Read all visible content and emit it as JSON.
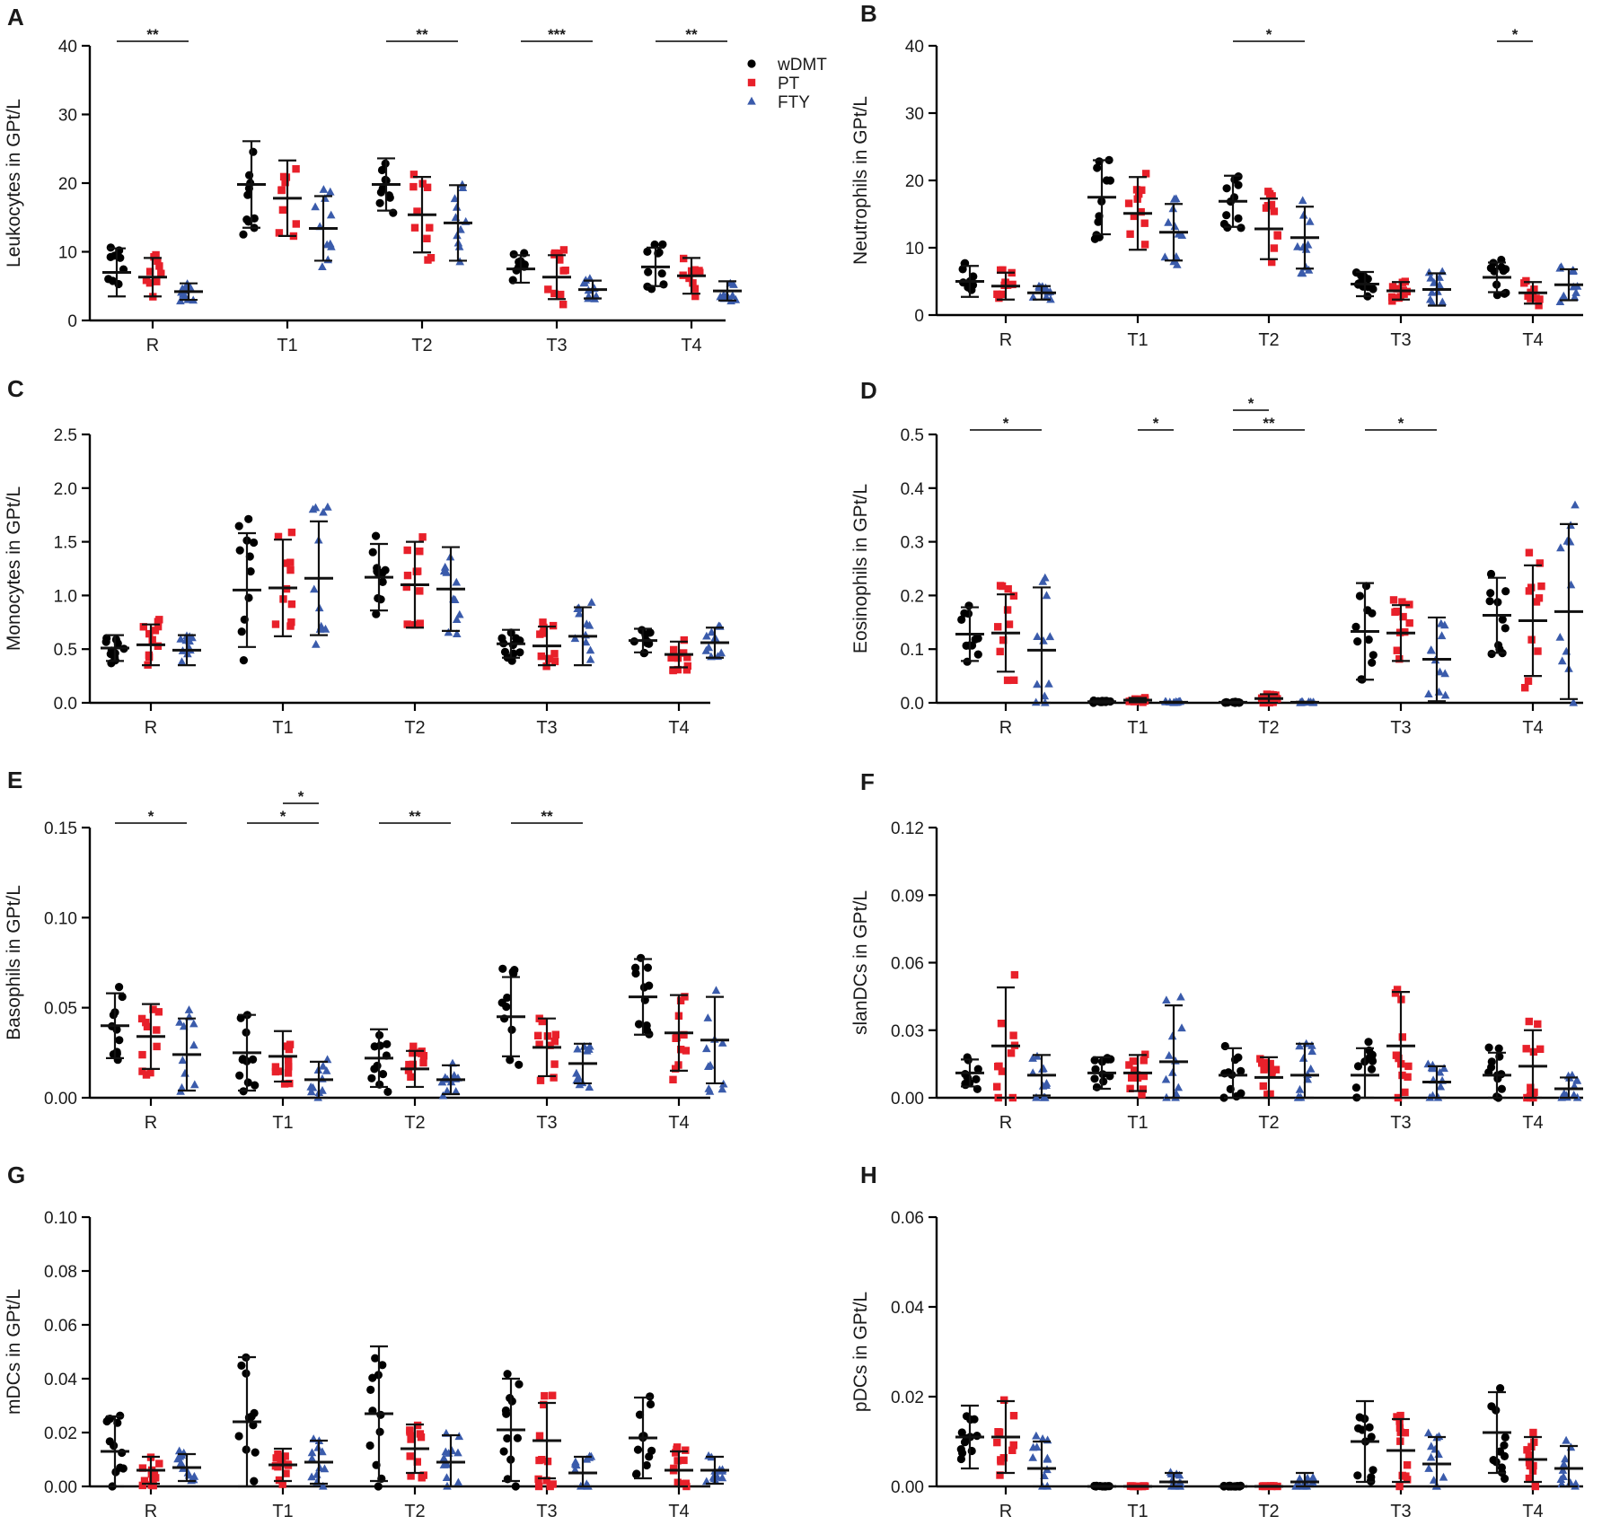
{
  "categories": [
    "R",
    "T1",
    "T2",
    "T3",
    "T4"
  ],
  "legend": [
    {
      "name": "wDMT",
      "color": "#000000",
      "marker": "circle"
    },
    {
      "name": "PT",
      "color": "#e8202a",
      "marker": "square"
    },
    {
      "name": "FTY",
      "color": "#3a5bab",
      "marker": "triangle"
    }
  ],
  "chart_data": [
    {
      "letter": "A",
      "type": "scatter",
      "title": "",
      "xlabel": "",
      "ylabel": "Leukocytes in GPt/L",
      "ylim": [
        0,
        40
      ],
      "ticks": [
        "0",
        "10",
        "20",
        "30",
        "40"
      ],
      "series": [
        {
          "name": "wDMT",
          "means": [
            7.0,
            19.8,
            19.8,
            7.5,
            7.8
          ],
          "sd": [
            3.5,
            6.3,
            3.8,
            2.0,
            2.8
          ]
        },
        {
          "name": "PT",
          "means": [
            6.3,
            17.8,
            15.4,
            6.3,
            6.5
          ],
          "sd": [
            2.8,
            5.5,
            5.5,
            3.2,
            2.6
          ]
        },
        {
          "name": "FTY",
          "means": [
            4.2,
            13.4,
            14.2,
            4.5,
            4.3
          ],
          "sd": [
            1.2,
            4.7,
            5.5,
            1.3,
            1.4
          ]
        }
      ],
      "significance": [
        {
          "group": 0,
          "from": 0,
          "to": 2,
          "label": "**"
        },
        {
          "group": 2,
          "from": 0,
          "to": 2,
          "label": "**"
        },
        {
          "group": 3,
          "from": 0,
          "to": 2,
          "label": "***"
        },
        {
          "group": 4,
          "from": 0,
          "to": 2,
          "label": "**"
        }
      ]
    },
    {
      "letter": "B",
      "type": "scatter",
      "title": "",
      "xlabel": "",
      "ylabel": "Neutrophils in GPt/L",
      "ylim": [
        0,
        40
      ],
      "ticks": [
        "0",
        "10",
        "20",
        "30",
        "40"
      ],
      "series": [
        {
          "name": "wDMT",
          "means": [
            5.0,
            17.5,
            16.9,
            4.6,
            5.6
          ],
          "sd": [
            2.3,
            5.5,
            3.8,
            1.8,
            2.2
          ]
        },
        {
          "name": "PT",
          "means": [
            4.3,
            15.1,
            12.8,
            3.6,
            3.3
          ],
          "sd": [
            2.0,
            5.4,
            4.5,
            1.3,
            1.6
          ]
        },
        {
          "name": "FTY",
          "means": [
            3.3,
            12.3,
            11.5,
            3.8,
            4.5
          ],
          "sd": [
            1.0,
            4.2,
            4.6,
            2.4,
            2.3
          ]
        }
      ],
      "significance": [
        {
          "group": 2,
          "from": 0,
          "to": 2,
          "label": "*"
        },
        {
          "group": 4,
          "from": 0,
          "to": 1,
          "label": "*"
        }
      ]
    },
    {
      "letter": "C",
      "type": "scatter",
      "title": "",
      "xlabel": "",
      "ylabel": "Monocytes in GPt/L",
      "ylim": [
        0,
        2.5
      ],
      "ticks": [
        "0.0",
        "0.5",
        "1.0",
        "1.5",
        "2.0",
        "2.5"
      ],
      "series": [
        {
          "name": "wDMT",
          "means": [
            0.51,
            1.05,
            1.17,
            0.55,
            0.58
          ],
          "sd": [
            0.12,
            0.53,
            0.31,
            0.13,
            0.11
          ]
        },
        {
          "name": "PT",
          "means": [
            0.54,
            1.07,
            1.1,
            0.53,
            0.45
          ],
          "sd": [
            0.19,
            0.45,
            0.4,
            0.18,
            0.12
          ]
        },
        {
          "name": "FTY",
          "means": [
            0.49,
            1.16,
            1.06,
            0.62,
            0.56
          ],
          "sd": [
            0.14,
            0.53,
            0.39,
            0.27,
            0.14
          ]
        }
      ],
      "significance": []
    },
    {
      "letter": "D",
      "type": "scatter",
      "title": "",
      "xlabel": "",
      "ylabel": "Eosinophils in GPt/L",
      "ylim": [
        0,
        0.5
      ],
      "ticks": [
        "0.0",
        "0.1",
        "0.2",
        "0.3",
        "0.4",
        "0.5"
      ],
      "series": [
        {
          "name": "wDMT",
          "means": [
            0.128,
            0.002,
            0.001,
            0.133,
            0.163
          ],
          "sd": [
            0.05,
            0.002,
            0.001,
            0.09,
            0.07
          ]
        },
        {
          "name": "PT",
          "means": [
            0.13,
            0.005,
            0.008,
            0.13,
            0.153
          ],
          "sd": [
            0.072,
            0.004,
            0.008,
            0.052,
            0.103
          ]
        },
        {
          "name": "FTY",
          "means": [
            0.098,
            0.001,
            0.001,
            0.081,
            0.17
          ],
          "sd": [
            0.117,
            0.001,
            0.001,
            0.078,
            0.163
          ]
        }
      ],
      "significance": [
        {
          "group": 0,
          "from": 0,
          "to": 2,
          "label": "*"
        },
        {
          "group": 1,
          "from": 1,
          "to": 2,
          "label": "*"
        },
        {
          "group": 2,
          "from": 0,
          "to": 1,
          "label": "*",
          "level": 1
        },
        {
          "group": 2,
          "from": 0,
          "to": 2,
          "label": "**"
        },
        {
          "group": 3,
          "from": 0,
          "to": 2,
          "label": "*"
        }
      ]
    },
    {
      "letter": "E",
      "type": "scatter",
      "title": "",
      "xlabel": "",
      "ylabel": "Basophils in GPt/L",
      "ylim": [
        0,
        0.15
      ],
      "ticks": [
        "0.00",
        "0.05",
        "0.10",
        "0.15"
      ],
      "series": [
        {
          "name": "wDMT",
          "means": [
            0.04,
            0.025,
            0.022,
            0.045,
            0.056
          ],
          "sd": [
            0.018,
            0.021,
            0.016,
            0.022,
            0.021
          ]
        },
        {
          "name": "PT",
          "means": [
            0.034,
            0.023,
            0.016,
            0.028,
            0.036
          ],
          "sd": [
            0.018,
            0.014,
            0.01,
            0.016,
            0.021
          ]
        },
        {
          "name": "FTY",
          "means": [
            0.024,
            0.01,
            0.01,
            0.019,
            0.032
          ],
          "sd": [
            0.02,
            0.01,
            0.008,
            0.011,
            0.024
          ]
        }
      ],
      "significance": [
        {
          "group": 0,
          "from": 0,
          "to": 2,
          "label": "*"
        },
        {
          "group": 1,
          "from": 1,
          "to": 2,
          "label": "*",
          "level": 1
        },
        {
          "group": 1,
          "from": 0,
          "to": 2,
          "label": "*"
        },
        {
          "group": 2,
          "from": 0,
          "to": 2,
          "label": "**"
        },
        {
          "group": 3,
          "from": 0,
          "to": 2,
          "label": "**"
        }
      ]
    },
    {
      "letter": "F",
      "type": "scatter",
      "title": "",
      "xlabel": "",
      "ylabel": "slanDCs in GPt/L",
      "ylim": [
        0,
        0.12
      ],
      "ticks": [
        "0.00",
        "0.03",
        "0.06",
        "0.09",
        "0.12"
      ],
      "series": [
        {
          "name": "wDMT",
          "means": [
            0.011,
            0.011,
            0.01,
            0.01,
            0.01
          ],
          "sd": [
            0.006,
            0.007,
            0.012,
            0.012,
            0.01
          ]
        },
        {
          "name": "PT",
          "means": [
            0.023,
            0.011,
            0.009,
            0.023,
            0.014
          ],
          "sd": [
            0.026,
            0.008,
            0.009,
            0.024,
            0.016
          ]
        },
        {
          "name": "FTY",
          "means": [
            0.01,
            0.016,
            0.01,
            0.007,
            0.004
          ],
          "sd": [
            0.009,
            0.025,
            0.014,
            0.007,
            0.005
          ]
        }
      ],
      "significance": []
    },
    {
      "letter": "G",
      "type": "scatter",
      "title": "",
      "xlabel": "",
      "ylabel": "mDCs in GPt/L",
      "ylim": [
        0,
        0.1
      ],
      "ticks": [
        "0.00",
        "0.02",
        "0.04",
        "0.06",
        "0.08",
        "0.10"
      ],
      "series": [
        {
          "name": "wDMT",
          "means": [
            0.013,
            0.024,
            0.027,
            0.021,
            0.018
          ],
          "sd": [
            0.013,
            0.024,
            0.025,
            0.019,
            0.015
          ]
        },
        {
          "name": "PT",
          "means": [
            0.006,
            0.008,
            0.014,
            0.017,
            0.006
          ],
          "sd": [
            0.005,
            0.006,
            0.009,
            0.014,
            0.007
          ]
        },
        {
          "name": "FTY",
          "means": [
            0.007,
            0.009,
            0.009,
            0.005,
            0.006
          ],
          "sd": [
            0.005,
            0.008,
            0.01,
            0.006,
            0.005
          ]
        }
      ],
      "significance": []
    },
    {
      "letter": "H",
      "type": "scatter",
      "title": "",
      "xlabel": "",
      "ylabel": "pDCs in GPt/L",
      "ylim": [
        0,
        0.06
      ],
      "ticks": [
        "0.00",
        "0.02",
        "0.04",
        "0.06"
      ],
      "series": [
        {
          "name": "wDMT",
          "means": [
            0.011,
            0.0,
            0.0,
            0.01,
            0.012
          ],
          "sd": [
            0.007,
            0.0001,
            0.0001,
            0.009,
            0.009
          ]
        },
        {
          "name": "PT",
          "means": [
            0.011,
            0.0,
            0.0,
            0.008,
            0.006
          ],
          "sd": [
            0.008,
            0.0001,
            0.0001,
            0.007,
            0.005
          ]
        },
        {
          "name": "FTY",
          "means": [
            0.004,
            0.001,
            0.001,
            0.005,
            0.004
          ],
          "sd": [
            0.006,
            0.002,
            0.002,
            0.006,
            0.005
          ]
        }
      ],
      "significance": []
    }
  ]
}
